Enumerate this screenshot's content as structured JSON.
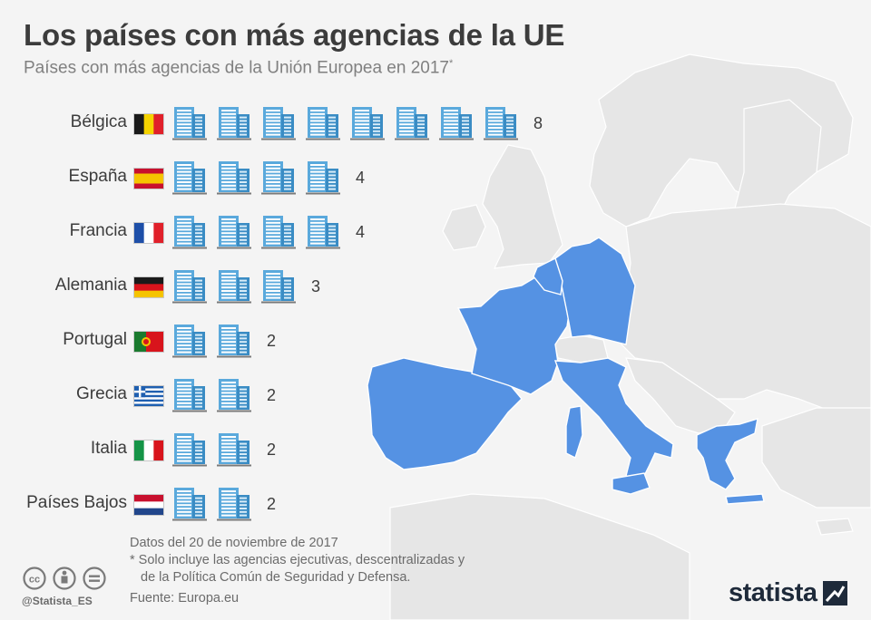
{
  "header": {
    "title": "Los países con más agencias de la UE",
    "subtitle": "Países con más agencias de la Unión Europea en 2017",
    "subtitle_mark": "*"
  },
  "chart_data": {
    "type": "bar",
    "categories": [
      "Bélgica",
      "España",
      "Francia",
      "Alemania",
      "Portugal",
      "Grecia",
      "Italia",
      "Países Bajos"
    ],
    "values": [
      8,
      4,
      4,
      3,
      2,
      2,
      2,
      2
    ]
  },
  "rows": [
    {
      "label": "Bélgica",
      "value": "8",
      "flag": "belgium-flag-icon"
    },
    {
      "label": "España",
      "value": "4",
      "flag": "spain-flag-icon"
    },
    {
      "label": "Francia",
      "value": "4",
      "flag": "france-flag-icon"
    },
    {
      "label": "Alemania",
      "value": "3",
      "flag": "germany-flag-icon"
    },
    {
      "label": "Portugal",
      "value": "2",
      "flag": "portugal-flag-icon"
    },
    {
      "label": "Grecia",
      "value": "2",
      "flag": "greece-flag-icon"
    },
    {
      "label": "Italia",
      "value": "2",
      "flag": "italy-flag-icon"
    },
    {
      "label": "Países Bajos",
      "value": "2",
      "flag": "netherlands-flag-icon"
    }
  ],
  "icons": {
    "unit": "office-building-icon"
  },
  "footer": {
    "date_note": "Datos del 20 de noviembre de 2017",
    "footnote_line1": "* Solo incluye las agencias ejecutivas, descentralizadas y",
    "footnote_line2": "de la Política Común de Seguridad y Defensa.",
    "source": "Fuente: Europa.eu",
    "handle": "@Statista_ES",
    "logo": "statista"
  },
  "colors": {
    "highlight": "#5592e3",
    "land": "#e6e6e6",
    "icon": "#5aa9dc",
    "text": "#3c3c3c",
    "muted": "#808080"
  }
}
